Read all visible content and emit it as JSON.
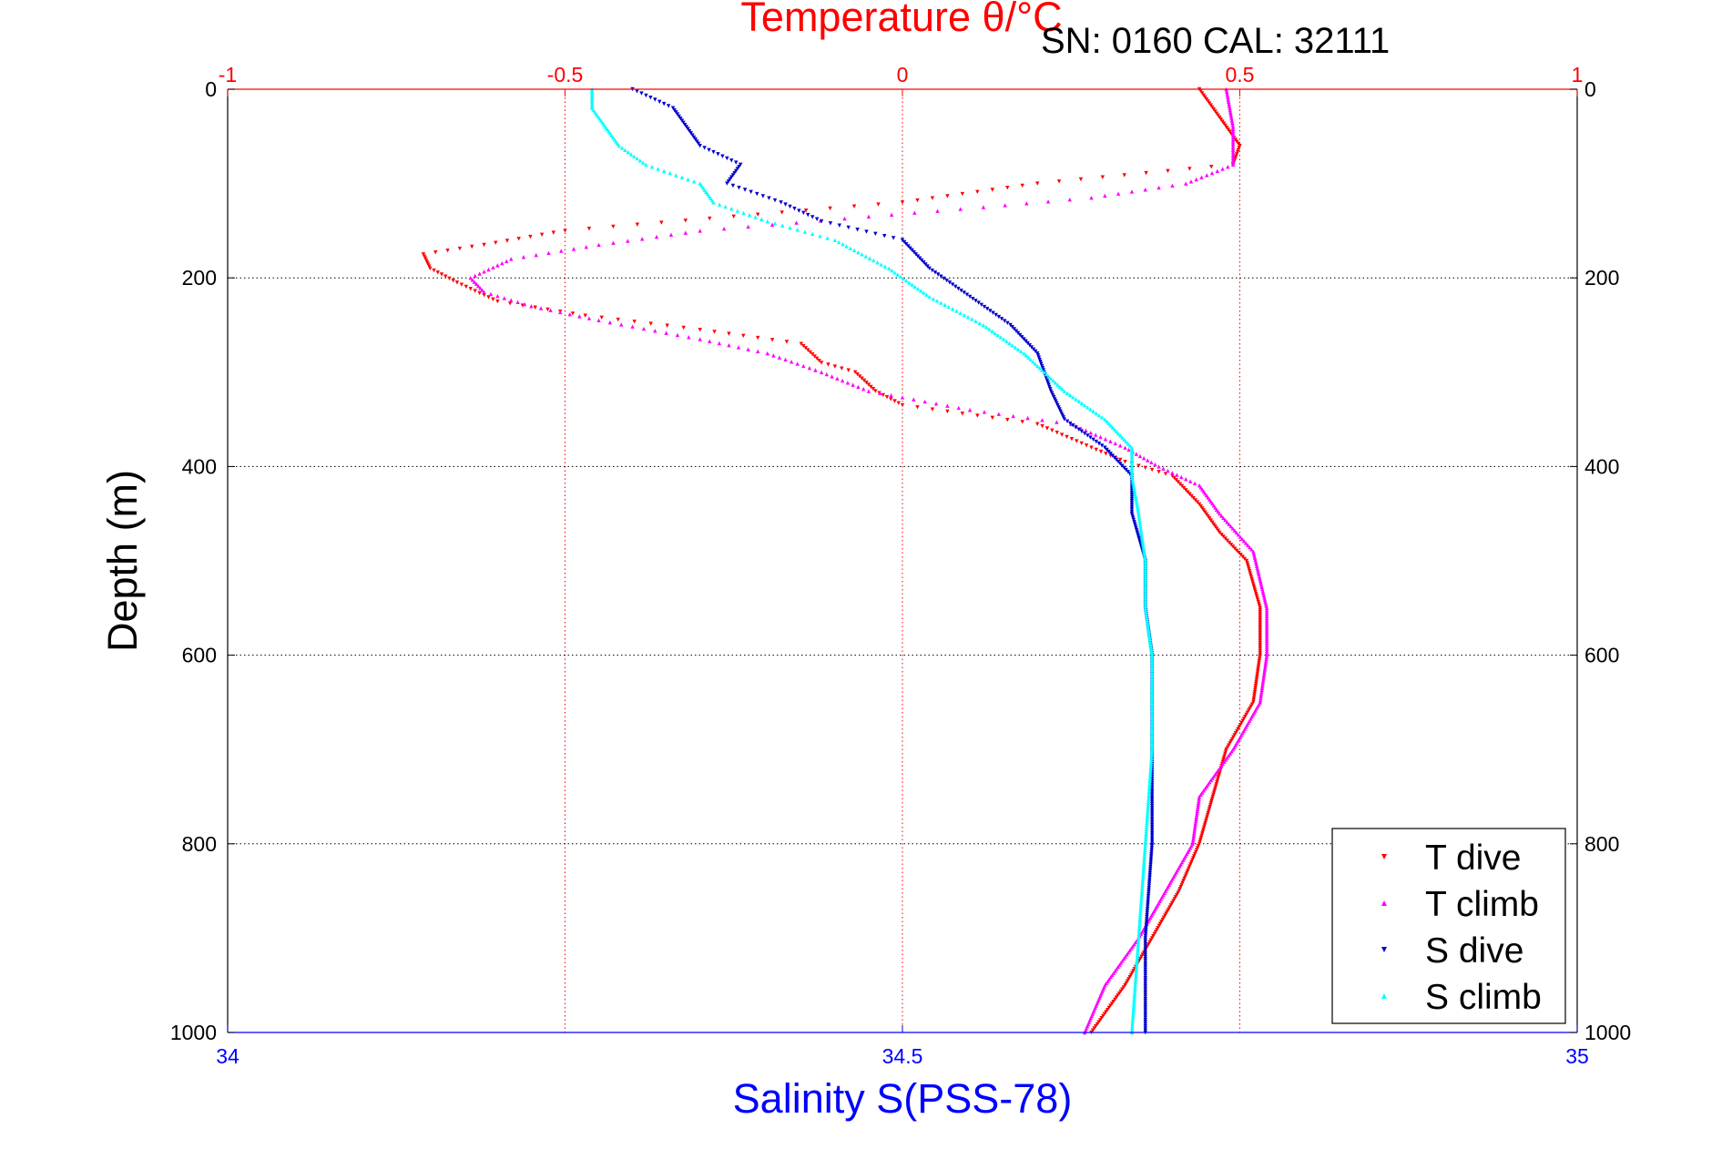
{
  "chart_data": {
    "type": "scatter",
    "title": "Temperature θ/°C",
    "info": "SN: 0160  CAL: 32111",
    "xlabel": "Salinity S(PSS-78)",
    "ylabel": "Depth (m)",
    "x_bottom_range": [
      34,
      35
    ],
    "x_top_range": [
      -1,
      1
    ],
    "ylim": [
      0,
      1000
    ],
    "y_reversed": true,
    "grid": true,
    "legend_position": "bottom-right",
    "x_bottom_ticks": [
      "34",
      "34.5",
      "35"
    ],
    "x_top_ticks": [
      "-1",
      "-0.5",
      "0",
      "0.5",
      "1"
    ],
    "y_ticks": [
      "0",
      "200",
      "400",
      "600",
      "800",
      "1000"
    ],
    "series": [
      {
        "name": "T dive",
        "axis": "top",
        "color": "#ff0000",
        "marker": "triangle-down",
        "points": [
          [
            0.44,
            0
          ],
          [
            0.47,
            30
          ],
          [
            0.5,
            60
          ],
          [
            0.49,
            80
          ],
          [
            0.2,
            100
          ],
          [
            0.0,
            120
          ],
          [
            -0.25,
            135
          ],
          [
            -0.5,
            150
          ],
          [
            -0.62,
            165
          ],
          [
            -0.71,
            175
          ],
          [
            -0.7,
            190
          ],
          [
            -0.66,
            205
          ],
          [
            -0.6,
            225
          ],
          [
            -0.47,
            240
          ],
          [
            -0.3,
            255
          ],
          [
            -0.15,
            270
          ],
          [
            -0.12,
            290
          ],
          [
            -0.07,
            300
          ],
          [
            -0.04,
            320
          ],
          [
            0.0,
            335
          ],
          [
            0.2,
            355
          ],
          [
            0.28,
            380
          ],
          [
            0.33,
            395
          ],
          [
            0.4,
            410
          ],
          [
            0.44,
            440
          ],
          [
            0.47,
            470
          ],
          [
            0.51,
            500
          ],
          [
            0.53,
            550
          ],
          [
            0.53,
            600
          ],
          [
            0.52,
            650
          ],
          [
            0.48,
            700
          ],
          [
            0.46,
            750
          ],
          [
            0.44,
            800
          ],
          [
            0.41,
            850
          ],
          [
            0.37,
            900
          ],
          [
            0.33,
            950
          ],
          [
            0.28,
            1000
          ]
        ]
      },
      {
        "name": "T climb",
        "axis": "top",
        "color": "#ff00ff",
        "marker": "triangle-up",
        "points": [
          [
            0.48,
            0
          ],
          [
            0.49,
            40
          ],
          [
            0.49,
            80
          ],
          [
            0.42,
            100
          ],
          [
            0.28,
            115
          ],
          [
            0.12,
            125
          ],
          [
            -0.05,
            135
          ],
          [
            -0.3,
            150
          ],
          [
            -0.45,
            165
          ],
          [
            -0.58,
            180
          ],
          [
            -0.64,
            200
          ],
          [
            -0.62,
            215
          ],
          [
            -0.55,
            230
          ],
          [
            -0.45,
            245
          ],
          [
            -0.3,
            265
          ],
          [
            -0.2,
            280
          ],
          [
            -0.12,
            300
          ],
          [
            -0.05,
            320
          ],
          [
            0.1,
            340
          ],
          [
            0.25,
            355
          ],
          [
            0.33,
            380
          ],
          [
            0.38,
            400
          ],
          [
            0.44,
            420
          ],
          [
            0.47,
            450
          ],
          [
            0.52,
            490
          ],
          [
            0.54,
            550
          ],
          [
            0.54,
            600
          ],
          [
            0.53,
            650
          ],
          [
            0.49,
            700
          ],
          [
            0.44,
            750
          ],
          [
            0.43,
            800
          ],
          [
            0.39,
            850
          ],
          [
            0.35,
            900
          ],
          [
            0.3,
            950
          ],
          [
            0.27,
            1000
          ]
        ]
      },
      {
        "name": "S dive",
        "axis": "bottom",
        "color": "#0000cc",
        "marker": "triangle-down",
        "points": [
          [
            34.3,
            0
          ],
          [
            34.33,
            20
          ],
          [
            34.34,
            40
          ],
          [
            34.35,
            60
          ],
          [
            34.38,
            80
          ],
          [
            34.37,
            100
          ],
          [
            34.41,
            120
          ],
          [
            34.44,
            140
          ],
          [
            34.5,
            160
          ],
          [
            34.52,
            190
          ],
          [
            34.55,
            220
          ],
          [
            34.58,
            250
          ],
          [
            34.6,
            280
          ],
          [
            34.61,
            320
          ],
          [
            34.62,
            350
          ],
          [
            34.65,
            380
          ],
          [
            34.67,
            410
          ],
          [
            34.67,
            450
          ],
          [
            34.68,
            500
          ],
          [
            34.68,
            550
          ],
          [
            34.685,
            600
          ],
          [
            34.685,
            700
          ],
          [
            34.685,
            800
          ],
          [
            34.68,
            900
          ],
          [
            34.68,
            1000
          ]
        ]
      },
      {
        "name": "S climb",
        "axis": "bottom",
        "color": "#00ffff",
        "marker": "triangle-up",
        "points": [
          [
            34.27,
            0
          ],
          [
            34.27,
            20
          ],
          [
            34.28,
            40
          ],
          [
            34.29,
            60
          ],
          [
            34.31,
            80
          ],
          [
            34.35,
            100
          ],
          [
            34.36,
            120
          ],
          [
            34.4,
            140
          ],
          [
            34.45,
            160
          ],
          [
            34.49,
            190
          ],
          [
            34.52,
            220
          ],
          [
            34.56,
            250
          ],
          [
            34.59,
            280
          ],
          [
            34.62,
            320
          ],
          [
            34.65,
            350
          ],
          [
            34.67,
            380
          ],
          [
            34.67,
            410
          ],
          [
            34.675,
            450
          ],
          [
            34.68,
            500
          ],
          [
            34.68,
            550
          ],
          [
            34.685,
            600
          ],
          [
            34.685,
            700
          ],
          [
            34.68,
            800
          ],
          [
            34.675,
            900
          ],
          [
            34.67,
            1000
          ]
        ]
      }
    ]
  }
}
